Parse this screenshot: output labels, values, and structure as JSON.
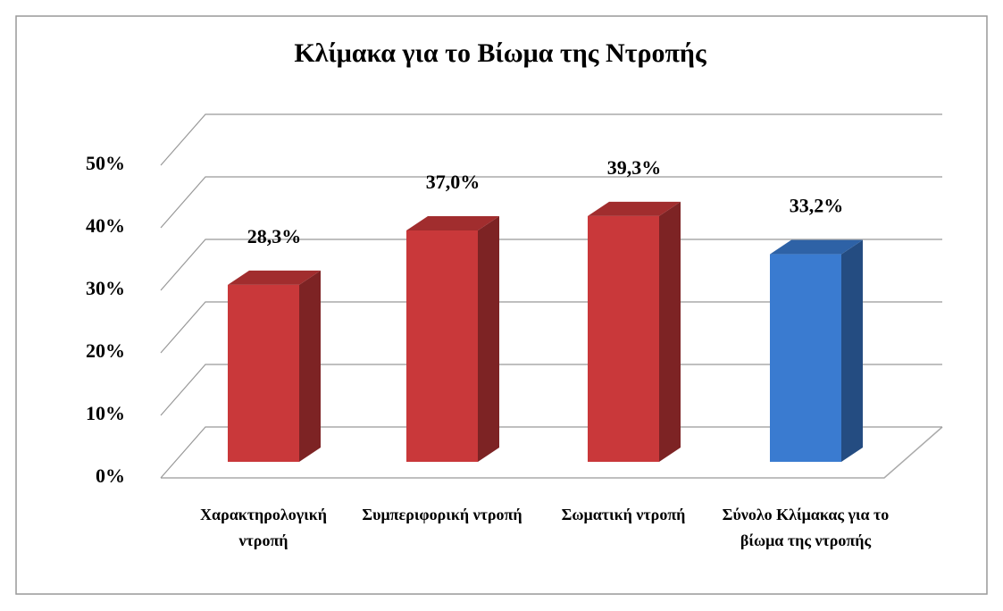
{
  "chart_data": {
    "type": "bar3d",
    "title": "Κλίμακα για το Βίωμα της Ντροπής",
    "categories": [
      "Χαρακτηρολογική ντροπή",
      "Συμπεριφορική ντροπή",
      "Σωματική ντροπή",
      "Σύνολο Κλίμακας για το βίωμα της ντροπής"
    ],
    "values": [
      28.3,
      37.0,
      39.3,
      33.2
    ],
    "value_labels": [
      "28,3%",
      "37,0%",
      "39,3%",
      "33,2%"
    ],
    "colors": [
      "#c9383a",
      "#c9383a",
      "#c9383a",
      "#3a7bd0"
    ],
    "ylim": [
      0,
      50
    ],
    "yticks": [
      {
        "value": 0,
        "label": "0%"
      },
      {
        "value": 10,
        "label": "10%"
      },
      {
        "value": 20,
        "label": "20%"
      },
      {
        "value": 30,
        "label": "30%"
      },
      {
        "value": 40,
        "label": "40%"
      },
      {
        "value": 50,
        "label": "50%"
      }
    ],
    "grid": true
  }
}
